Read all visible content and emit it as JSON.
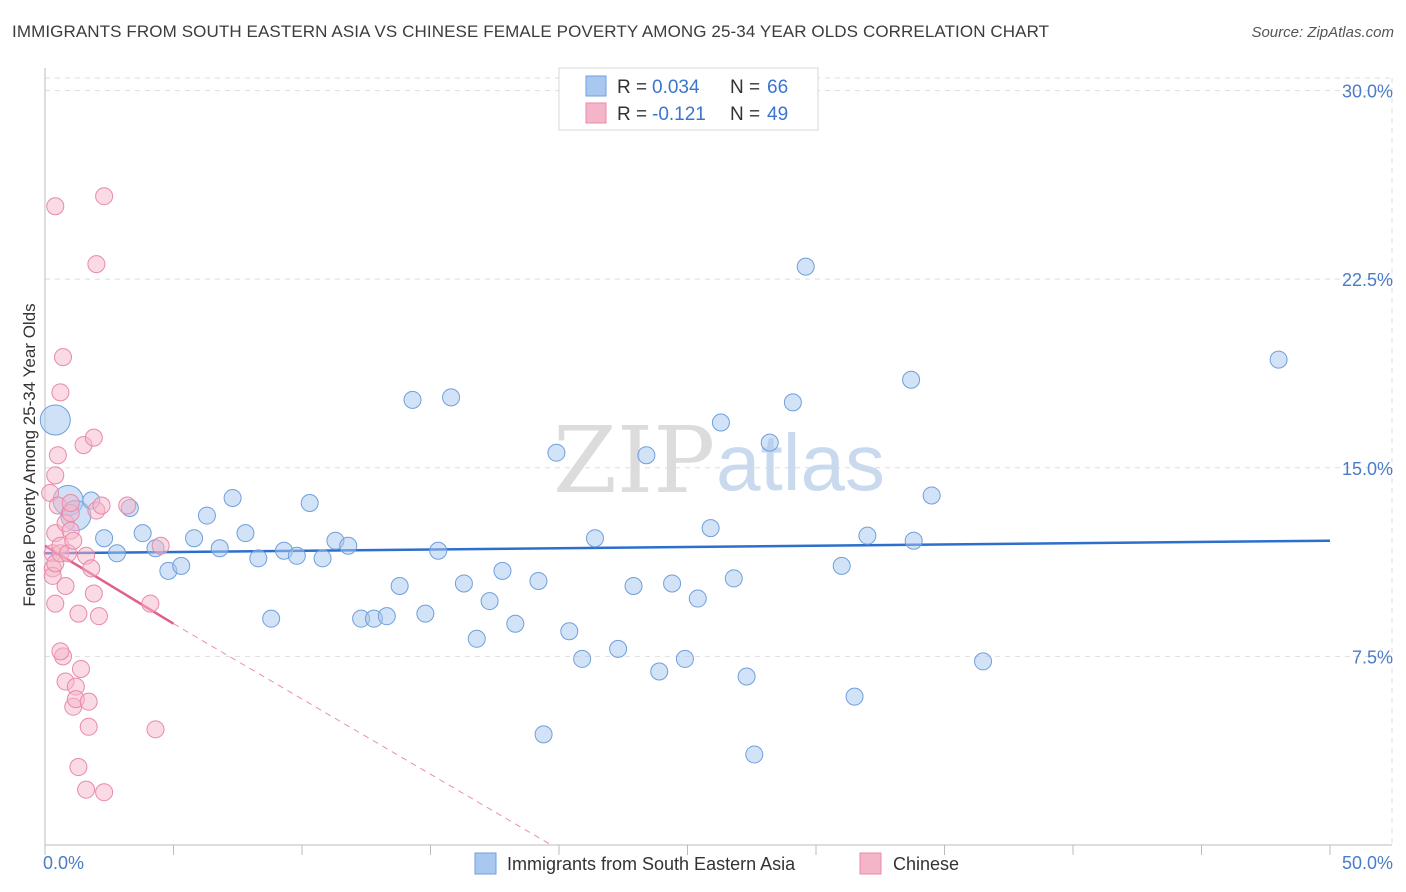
{
  "title": "IMMIGRANTS FROM SOUTH EASTERN ASIA VS CHINESE FEMALE POVERTY AMONG 25-34 YEAR OLDS CORRELATION CHART",
  "source": "Source: ZipAtlas.com",
  "watermark": {
    "zip": "ZIP",
    "atlas": "atlas"
  },
  "colors": {
    "blue_fill": "#a8c8f0",
    "blue_stroke": "#6f9fdc",
    "blue_line": "#2d6fcc",
    "pink_fill": "#f5b5c9",
    "pink_stroke": "#e88aa8",
    "pink_line": "#e0608a",
    "grid": "#dddddd",
    "tick_text": "#4a7cc9"
  },
  "legend": {
    "r_label": "R =",
    "n_label": "N =",
    "series1": {
      "r": "0.034",
      "n": "66"
    },
    "series2": {
      "r": "-0.121",
      "n": "49"
    }
  },
  "chart_data": {
    "type": "scatter",
    "title": "IMMIGRANTS FROM SOUTH EASTERN ASIA VS CHINESE FEMALE POVERTY AMONG 25-34 YEAR OLDS CORRELATION CHART",
    "xlabel": "",
    "ylabel": "Female Poverty Among 25-34 Year Olds",
    "xlim": [
      0,
      50
    ],
    "ylim": [
      0,
      30.5
    ],
    "x_tick_labels": [
      "0.0%",
      "50.0%"
    ],
    "y_ticks": [
      7.5,
      15.0,
      22.5,
      30.0
    ],
    "y_tick_labels": [
      "7.5%",
      "15.0%",
      "22.5%",
      "30.0%"
    ],
    "series": [
      {
        "name": "Immigrants from South Eastern Asia",
        "color": "#a8c8f0",
        "trend": {
          "x": [
            0,
            50
          ],
          "y": [
            11.6,
            12.1
          ]
        },
        "points": [
          {
            "x": 0.4,
            "y": 16.9,
            "big": true
          },
          {
            "x": 0.9,
            "y": 13.7,
            "big": true
          },
          {
            "x": 1.2,
            "y": 13.1,
            "big": true
          },
          {
            "x": 1.8,
            "y": 13.7
          },
          {
            "x": 2.3,
            "y": 12.2
          },
          {
            "x": 2.8,
            "y": 11.6
          },
          {
            "x": 3.3,
            "y": 13.4
          },
          {
            "x": 3.8,
            "y": 12.4
          },
          {
            "x": 4.3,
            "y": 11.8
          },
          {
            "x": 4.8,
            "y": 10.9
          },
          {
            "x": 5.3,
            "y": 11.1
          },
          {
            "x": 5.8,
            "y": 12.2
          },
          {
            "x": 6.3,
            "y": 13.1
          },
          {
            "x": 6.8,
            "y": 11.8
          },
          {
            "x": 7.3,
            "y": 13.8
          },
          {
            "x": 7.8,
            "y": 12.4
          },
          {
            "x": 8.3,
            "y": 11.4
          },
          {
            "x": 8.8,
            "y": 9.0
          },
          {
            "x": 9.3,
            "y": 11.7
          },
          {
            "x": 9.8,
            "y": 11.5
          },
          {
            "x": 10.3,
            "y": 13.6
          },
          {
            "x": 10.8,
            "y": 11.4
          },
          {
            "x": 11.3,
            "y": 12.1
          },
          {
            "x": 11.8,
            "y": 11.9
          },
          {
            "x": 12.3,
            "y": 9.0
          },
          {
            "x": 12.8,
            "y": 9.0
          },
          {
            "x": 13.3,
            "y": 9.1
          },
          {
            "x": 13.8,
            "y": 10.3
          },
          {
            "x": 14.3,
            "y": 17.7
          },
          {
            "x": 14.8,
            "y": 9.2
          },
          {
            "x": 15.3,
            "y": 11.7
          },
          {
            "x": 15.8,
            "y": 17.8
          },
          {
            "x": 16.3,
            "y": 10.4
          },
          {
            "x": 16.8,
            "y": 8.2
          },
          {
            "x": 17.3,
            "y": 9.7
          },
          {
            "x": 17.8,
            "y": 10.9
          },
          {
            "x": 18.3,
            "y": 8.8
          },
          {
            "x": 19.2,
            "y": 10.5
          },
          {
            "x": 19.4,
            "y": 4.4
          },
          {
            "x": 19.9,
            "y": 15.6
          },
          {
            "x": 20.4,
            "y": 8.5
          },
          {
            "x": 20.9,
            "y": 7.4
          },
          {
            "x": 21.4,
            "y": 12.2
          },
          {
            "x": 22.3,
            "y": 7.8
          },
          {
            "x": 22.9,
            "y": 10.3
          },
          {
            "x": 23.4,
            "y": 15.5
          },
          {
            "x": 23.9,
            "y": 6.9
          },
          {
            "x": 24.4,
            "y": 10.4
          },
          {
            "x": 24.9,
            "y": 7.4
          },
          {
            "x": 25.4,
            "y": 9.8
          },
          {
            "x": 25.9,
            "y": 12.6
          },
          {
            "x": 26.3,
            "y": 16.8
          },
          {
            "x": 26.8,
            "y": 10.6
          },
          {
            "x": 27.3,
            "y": 6.7
          },
          {
            "x": 27.6,
            "y": 3.6
          },
          {
            "x": 28.2,
            "y": 16.0
          },
          {
            "x": 29.1,
            "y": 17.6
          },
          {
            "x": 29.6,
            "y": 23.0
          },
          {
            "x": 31.0,
            "y": 11.1
          },
          {
            "x": 31.5,
            "y": 5.9
          },
          {
            "x": 32.0,
            "y": 12.3
          },
          {
            "x": 33.8,
            "y": 12.1
          },
          {
            "x": 33.7,
            "y": 18.5
          },
          {
            "x": 34.5,
            "y": 13.9
          },
          {
            "x": 36.5,
            "y": 7.3
          },
          {
            "x": 48.0,
            "y": 19.3
          }
        ]
      },
      {
        "name": "Chinese",
        "color": "#f5b5c9",
        "trend": {
          "x": [
            0,
            5.0
          ],
          "y": [
            11.9,
            8.8
          ]
        },
        "trend_extension": {
          "x": [
            5.0,
            19.7
          ],
          "y": [
            8.8,
            0
          ]
        },
        "points": [
          {
            "x": 0.2,
            "y": 14.0
          },
          {
            "x": 0.3,
            "y": 11.6
          },
          {
            "x": 0.3,
            "y": 11.0
          },
          {
            "x": 0.3,
            "y": 10.7
          },
          {
            "x": 0.4,
            "y": 9.6
          },
          {
            "x": 0.4,
            "y": 11.2
          },
          {
            "x": 0.4,
            "y": 12.4
          },
          {
            "x": 0.5,
            "y": 13.5
          },
          {
            "x": 0.6,
            "y": 11.6
          },
          {
            "x": 0.6,
            "y": 11.9
          },
          {
            "x": 0.4,
            "y": 14.7
          },
          {
            "x": 0.5,
            "y": 15.5
          },
          {
            "x": 0.4,
            "y": 25.4
          },
          {
            "x": 0.6,
            "y": 18.0
          },
          {
            "x": 0.7,
            "y": 19.4
          },
          {
            "x": 0.7,
            "y": 7.5
          },
          {
            "x": 0.6,
            "y": 7.7
          },
          {
            "x": 0.8,
            "y": 6.5
          },
          {
            "x": 0.8,
            "y": 10.3
          },
          {
            "x": 0.8,
            "y": 12.8
          },
          {
            "x": 0.9,
            "y": 11.6
          },
          {
            "x": 1.0,
            "y": 13.2
          },
          {
            "x": 1.0,
            "y": 12.5
          },
          {
            "x": 1.0,
            "y": 13.6
          },
          {
            "x": 1.1,
            "y": 12.1
          },
          {
            "x": 1.1,
            "y": 5.5
          },
          {
            "x": 1.2,
            "y": 6.3
          },
          {
            "x": 1.2,
            "y": 5.8
          },
          {
            "x": 1.3,
            "y": 3.1
          },
          {
            "x": 1.4,
            "y": 7.0
          },
          {
            "x": 1.3,
            "y": 9.2
          },
          {
            "x": 1.5,
            "y": 15.9
          },
          {
            "x": 1.6,
            "y": 2.2
          },
          {
            "x": 1.7,
            "y": 4.7
          },
          {
            "x": 1.7,
            "y": 5.7
          },
          {
            "x": 1.6,
            "y": 11.5
          },
          {
            "x": 1.8,
            "y": 11.0
          },
          {
            "x": 1.9,
            "y": 16.2
          },
          {
            "x": 1.9,
            "y": 10.0
          },
          {
            "x": 2.0,
            "y": 13.3
          },
          {
            "x": 2.2,
            "y": 13.5
          },
          {
            "x": 2.1,
            "y": 9.1
          },
          {
            "x": 2.3,
            "y": 2.1
          },
          {
            "x": 2.3,
            "y": 25.8
          },
          {
            "x": 2.0,
            "y": 23.1
          },
          {
            "x": 4.1,
            "y": 9.6
          },
          {
            "x": 4.5,
            "y": 11.9
          },
          {
            "x": 4.3,
            "y": 4.6
          },
          {
            "x": 3.2,
            "y": 13.5
          }
        ]
      }
    ]
  },
  "bottom_legend": {
    "series1_label": "Immigrants from South Eastern Asia",
    "series2_label": "Chinese"
  }
}
